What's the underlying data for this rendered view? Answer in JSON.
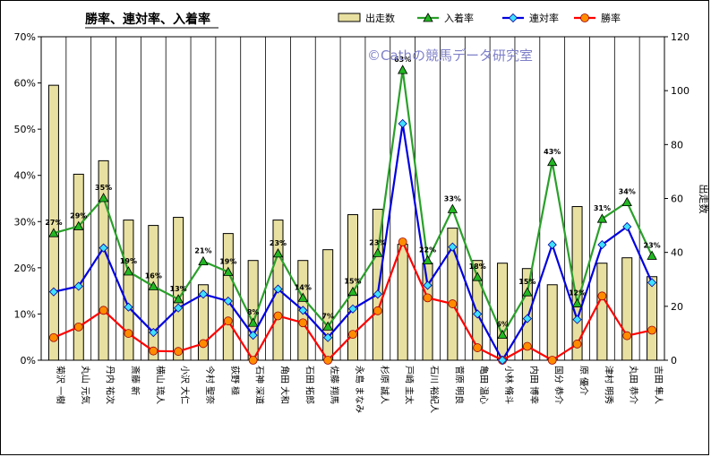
{
  "chart_data": {
    "type": "bar",
    "title": "勝率、連対率、入着率",
    "watermark": "©Cathの競馬データ研究室",
    "categories": [
      "菊沢 一樹",
      "丸山 元気",
      "丹内 祐次",
      "斎藤 新",
      "横山 琉人",
      "小沢 大仁",
      "今村 聖奈",
      "荻野 極",
      "石神 深道",
      "角田 大和",
      "石田 拓郎",
      "佐藤 翔馬",
      "永島 まなみ",
      "杉原 誠人",
      "戸崎 圭太",
      "石川 裕紀人",
      "菅原 明良",
      "亀田 温心",
      "小林 脩斗",
      "内田 博幸",
      "国分 恭介",
      "原 優介",
      "津村 明秀",
      "丸田 恭介",
      "吉田 隼人"
    ],
    "series": [
      {
        "name": "出走数",
        "type": "bar",
        "axis": "right",
        "color": "#e8e0a0",
        "values": [
          102,
          69,
          74,
          52,
          50,
          53,
          28,
          47,
          37,
          52,
          37,
          41,
          54,
          56,
          43,
          36,
          49,
          37,
          36,
          34,
          28,
          57,
          36,
          38,
          31
        ]
      },
      {
        "name": "入着率",
        "type": "line",
        "axis": "left",
        "color": "#2aa02a",
        "marker": "triangle",
        "marker_color": "#22b822",
        "values": [
          27.5,
          29.0,
          35.1,
          19.2,
          16.0,
          13.2,
          21.4,
          19.1,
          8.1,
          23.1,
          13.5,
          7.3,
          14.8,
          23.2,
          62.8,
          21.6,
          32.7,
          18.0,
          5.5,
          14.7,
          42.9,
          12.3,
          30.6,
          34.2,
          22.6
        ],
        "labels": [
          "27%",
          "29%",
          "35%",
          "19%",
          "16%",
          "13%",
          "21%",
          "19%",
          "8%",
          "23%",
          "14%",
          "7%",
          "15%",
          "23%",
          "63%",
          "22%",
          "33%",
          "18%",
          "6%",
          "15%",
          "43%",
          "12%",
          "31%",
          "34%",
          "23%"
        ]
      },
      {
        "name": "連対率",
        "type": "line",
        "axis": "left",
        "color": "#0000e0",
        "marker": "diamond",
        "marker_color": "#40e0ff",
        "values": [
          14.8,
          16.0,
          24.3,
          11.5,
          6.0,
          11.3,
          14.3,
          12.8,
          5.4,
          15.4,
          10.8,
          4.9,
          11.1,
          14.3,
          51.2,
          16.2,
          24.5,
          10.0,
          0,
          9.0,
          25.0,
          8.8,
          25.0,
          28.9,
          16.8
        ]
      },
      {
        "name": "勝率",
        "type": "line",
        "axis": "left",
        "color": "#ff0000",
        "marker": "circle",
        "marker_color": "#ff8c00",
        "values": [
          4.9,
          7.2,
          10.8,
          5.8,
          2.0,
          1.9,
          3.6,
          8.5,
          0,
          9.6,
          8.1,
          0,
          5.6,
          10.7,
          25.6,
          13.5,
          12.2,
          2.7,
          0,
          3.0,
          0,
          3.5,
          13.9,
          5.3,
          6.5
        ]
      }
    ],
    "y_left": {
      "min": 0,
      "max": 70,
      "step": 10,
      "tick_labels": [
        "0%",
        "10%",
        "20%",
        "30%",
        "40%",
        "50%",
        "60%",
        "70%"
      ]
    },
    "y_right": {
      "min": 0,
      "max": 120,
      "step": 20,
      "tick_labels": [
        "0",
        "20",
        "40",
        "60",
        "80",
        "100",
        "120"
      ],
      "label": "出走数"
    },
    "grid": "vertical",
    "legend": "top"
  }
}
